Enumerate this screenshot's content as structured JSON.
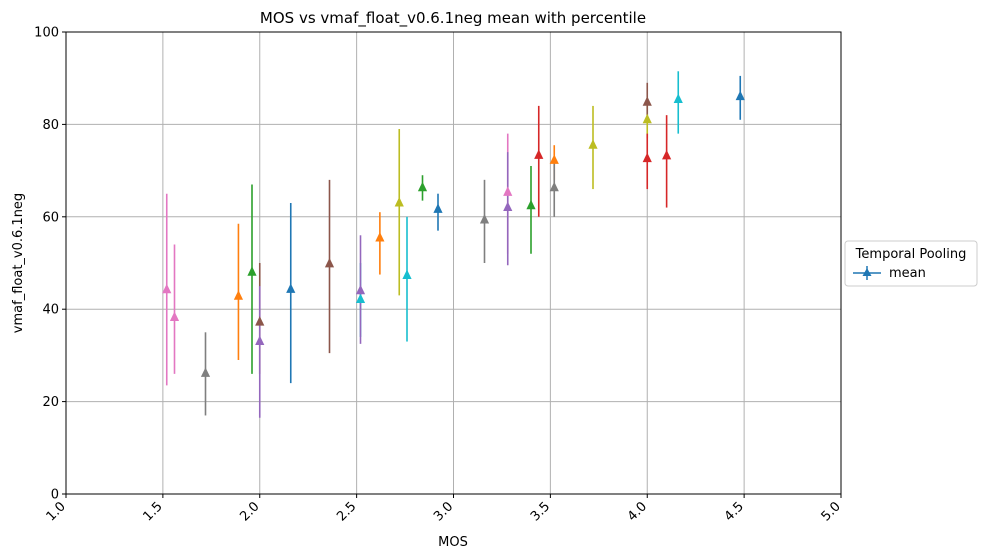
{
  "chart_data": {
    "type": "scatter",
    "title": "MOS vs vmaf_float_v0.6.1neg mean with percentile",
    "xlabel": "MOS",
    "ylabel": "vmaf_float_v0.6.1neg",
    "xlim": [
      1.0,
      5.0
    ],
    "ylim": [
      0,
      100
    ],
    "x_ticks": [
      "1.0",
      "1.5",
      "2.0",
      "2.5",
      "3.0",
      "3.5",
      "4.0",
      "4.5",
      "5.0"
    ],
    "y_ticks": [
      "0",
      "20",
      "40",
      "60",
      "80",
      "100"
    ],
    "grid": true,
    "legend": {
      "title": "Temporal Pooling",
      "placement": "right",
      "entries": [
        {
          "name": "mean",
          "color": "#1f77b4",
          "marker": "triangle-up"
        }
      ]
    },
    "points": [
      {
        "x": 1.52,
        "y": 44.2,
        "low": 23.5,
        "high": 65.0,
        "color": "#e377c2"
      },
      {
        "x": 1.56,
        "y": 38.2,
        "low": 26.0,
        "high": 54.0,
        "color": "#e377c2"
      },
      {
        "x": 1.72,
        "y": 26.1,
        "low": 17.0,
        "high": 35.0,
        "color": "#7f7f7f"
      },
      {
        "x": 1.89,
        "y": 42.8,
        "low": 29.0,
        "high": 58.5,
        "color": "#ff7f0e"
      },
      {
        "x": 1.96,
        "y": 48.0,
        "low": 26.0,
        "high": 67.0,
        "color": "#2ca02c"
      },
      {
        "x": 2.0,
        "y": 37.2,
        "low": 26.0,
        "high": 50.0,
        "color": "#8c564b"
      },
      {
        "x": 2.0,
        "y": 33.0,
        "low": 16.5,
        "high": 45.0,
        "color": "#9467bd"
      },
      {
        "x": 2.16,
        "y": 44.3,
        "low": 24.0,
        "high": 63.0,
        "color": "#1f77b4"
      },
      {
        "x": 2.36,
        "y": 49.8,
        "low": 30.5,
        "high": 68.0,
        "color": "#8c564b"
      },
      {
        "x": 2.52,
        "y": 42.1,
        "low": 34.0,
        "high": 50.0,
        "color": "#17becf"
      },
      {
        "x": 2.52,
        "y": 44.0,
        "low": 32.5,
        "high": 56.0,
        "color": "#9467bd"
      },
      {
        "x": 2.62,
        "y": 55.4,
        "low": 47.5,
        "high": 61.0,
        "color": "#ff7f0e"
      },
      {
        "x": 2.72,
        "y": 63.0,
        "low": 43.0,
        "high": 79.0,
        "color": "#bcbd22"
      },
      {
        "x": 2.76,
        "y": 47.3,
        "low": 33.0,
        "high": 60.0,
        "color": "#17becf"
      },
      {
        "x": 2.84,
        "y": 66.3,
        "low": 63.5,
        "high": 69.0,
        "color": "#2ca02c"
      },
      {
        "x": 2.92,
        "y": 61.6,
        "low": 57.0,
        "high": 65.0,
        "color": "#1f77b4"
      },
      {
        "x": 3.16,
        "y": 59.3,
        "low": 50.0,
        "high": 68.0,
        "color": "#7f7f7f"
      },
      {
        "x": 3.28,
        "y": 65.3,
        "low": 52.0,
        "high": 78.0,
        "color": "#e377c2"
      },
      {
        "x": 3.28,
        "y": 62.0,
        "low": 49.5,
        "high": 74.0,
        "color": "#9467bd"
      },
      {
        "x": 3.4,
        "y": 62.4,
        "low": 52.0,
        "high": 71.0,
        "color": "#2ca02c"
      },
      {
        "x": 3.44,
        "y": 73.3,
        "low": 60.0,
        "high": 84.0,
        "color": "#d62728"
      },
      {
        "x": 3.52,
        "y": 72.2,
        "low": 68.0,
        "high": 75.5,
        "color": "#ff7f0e"
      },
      {
        "x": 3.52,
        "y": 66.3,
        "low": 60.0,
        "high": 72.0,
        "color": "#7f7f7f"
      },
      {
        "x": 3.72,
        "y": 75.5,
        "low": 66.0,
        "high": 84.0,
        "color": "#bcbd22"
      },
      {
        "x": 4.0,
        "y": 81.0,
        "low": 77.0,
        "high": 84.0,
        "color": "#bcbd22"
      },
      {
        "x": 4.0,
        "y": 84.8,
        "low": 80.5,
        "high": 89.0,
        "color": "#8c564b"
      },
      {
        "x": 4.0,
        "y": 72.6,
        "low": 66.0,
        "high": 78.0,
        "color": "#d62728"
      },
      {
        "x": 4.1,
        "y": 73.2,
        "low": 62.0,
        "high": 82.0,
        "color": "#d62728"
      },
      {
        "x": 4.16,
        "y": 85.4,
        "low": 78.0,
        "high": 91.5,
        "color": "#17becf"
      },
      {
        "x": 4.48,
        "y": 86.0,
        "low": 81.0,
        "high": 90.5,
        "color": "#1f77b4"
      }
    ]
  }
}
